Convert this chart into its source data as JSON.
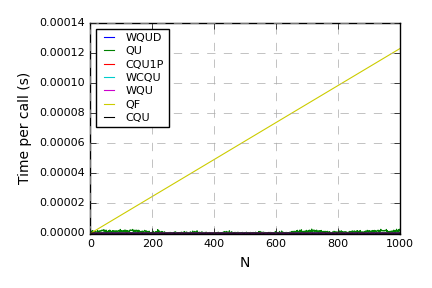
{
  "title": "",
  "xlabel": "N",
  "ylabel": "Time per call (s)",
  "xlim": [
    0,
    1000
  ],
  "ylim": [
    0,
    0.00014
  ],
  "yticks": [
    0.0,
    2e-05,
    4e-05,
    6e-05,
    8e-05,
    0.0001,
    0.00012,
    0.00014
  ],
  "xticks": [
    0,
    200,
    400,
    600,
    800,
    1000
  ],
  "series": [
    {
      "label": "WQUD",
      "color": "#0000ff"
    },
    {
      "label": "QU",
      "color": "#008000"
    },
    {
      "label": "CQU1P",
      "color": "#ff0000"
    },
    {
      "label": "WCQU",
      "color": "#00cccc"
    },
    {
      "label": "WQU",
      "color": "#cc00cc"
    },
    {
      "label": "QF",
      "color": "#cccc00"
    },
    {
      "label": "CQU",
      "color": "#000000"
    }
  ],
  "grid_color": "#aaaaaa",
  "grid_linestyle": "--",
  "legend_fontsize": 8,
  "tick_fontsize": 8,
  "axis_label_fontsize": 10,
  "n_points": 1000,
  "random_seed": 17
}
